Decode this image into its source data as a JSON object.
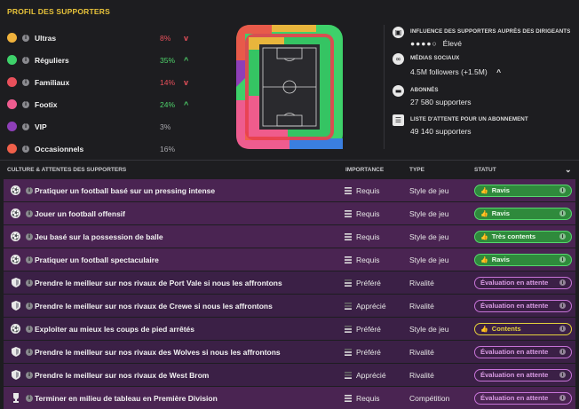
{
  "profile": {
    "title": "PROFIL DES SUPPORTERS",
    "segments": [
      {
        "name": "Ultras",
        "pct": "8%",
        "trend": "down",
        "color": "#f0b23c"
      },
      {
        "name": "Réguliers",
        "pct": "35%",
        "trend": "up",
        "color": "#3ed16a"
      },
      {
        "name": "Familiaux",
        "pct": "14%",
        "trend": "down",
        "color": "#e8505b"
      },
      {
        "name": "Footix",
        "pct": "24%",
        "trend": "up",
        "color": "#ee5c8f"
      },
      {
        "name": "VIP",
        "pct": "3%",
        "trend": "none",
        "color": "#8e3fb8"
      },
      {
        "name": "Occasionnels",
        "pct": "16%",
        "trend": "none",
        "color": "#f0604a"
      }
    ],
    "trend_up_glyph": "^",
    "trend_down_glyph": "v"
  },
  "stats": {
    "influence": {
      "label": "INFLUENCE DES SUPPORTERS AUPRÈS DES DIRIGEANTS",
      "value": "Élevé",
      "filled_dots": 4,
      "total_dots": 5
    },
    "social": {
      "label": "MÉDIAS SOCIAUX",
      "value": "4.5M followers (+1.5M)"
    },
    "subscribers": {
      "label": "ABONNÉS",
      "value": "27 580 supporters"
    },
    "waitlist": {
      "label": "LISTE D'ATTENTE POUR UN ABONNEMENT",
      "value": "49 140 supporters"
    }
  },
  "culture": {
    "title": "CULTURE & ATTENTES DES SUPPORTERS",
    "col_importance": "IMPORTANCE",
    "col_type": "TYPE",
    "col_status": "STATUT",
    "rows": [
      {
        "text": "Pratiquer un football basé sur un pressing intense",
        "importance": "Requis",
        "type": "Style de jeu",
        "status": "Ravis",
        "status_kind": "green",
        "icon": "ball",
        "bg": "purple"
      },
      {
        "text": "Jouer un football offensif",
        "importance": "Requis",
        "type": "Style de jeu",
        "status": "Ravis",
        "status_kind": "green",
        "icon": "ball",
        "bg": "purple"
      },
      {
        "text": "Jeu basé sur la possession de balle",
        "importance": "Requis",
        "type": "Style de jeu",
        "status": "Très contents",
        "status_kind": "green",
        "icon": "ball",
        "bg": "purple"
      },
      {
        "text": "Pratiquer un football spectaculaire",
        "importance": "Requis",
        "type": "Style de jeu",
        "status": "Ravis",
        "status_kind": "green",
        "icon": "ball",
        "bg": "purple"
      },
      {
        "text": "Prendre le meilleur sur nos rivaux de Port Vale si nous les affrontons",
        "importance": "Préféré",
        "type": "Rivalité",
        "status": "Évaluation en attente",
        "status_kind": "pending",
        "icon": "shield",
        "bg": "darkpurple"
      },
      {
        "text": "Prendre le meilleur sur nos rivaux de Crewe si nous les affrontons",
        "importance": "Apprécié",
        "type": "Rivalité",
        "status": "Évaluation en attente",
        "status_kind": "pending",
        "icon": "shield",
        "bg": "darkpurple"
      },
      {
        "text": "Exploiter au mieux les coups de pied arrêtés",
        "importance": "Préféré",
        "type": "Style de jeu",
        "status": "Contents",
        "status_kind": "yellow",
        "icon": "ball",
        "bg": "darkpurple"
      },
      {
        "text": "Prendre le meilleur sur nos rivaux des Wolves si nous les affrontons",
        "importance": "Préféré",
        "type": "Rivalité",
        "status": "Évaluation en attente",
        "status_kind": "pending",
        "icon": "shield",
        "bg": "darkpurple"
      },
      {
        "text": "Prendre le meilleur sur nos rivaux de West Brom",
        "importance": "Apprécié",
        "type": "Rivalité",
        "status": "Évaluation en attente",
        "status_kind": "pending",
        "icon": "shield",
        "bg": "darkpurple"
      },
      {
        "text": "Terminer en milieu de tableau en Première Division",
        "importance": "Requis",
        "type": "Compétition",
        "status": "Évaluation en attente",
        "status_kind": "pending",
        "icon": "trophy",
        "bg": "purple"
      }
    ]
  },
  "colors": {
    "accent_yellow": "#e8c33a",
    "good_green": "#4fd36b",
    "bad_red": "#e8505b",
    "row_purple": "#4a2452",
    "row_dark_purple": "#3b2046"
  }
}
